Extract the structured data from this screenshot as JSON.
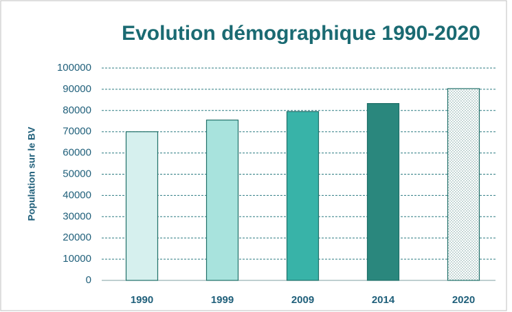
{
  "chart_data": {
    "type": "bar",
    "title": "Evolution démographique 1990-2020",
    "y_label": "Population sur le BV",
    "categories": [
      "1990",
      "1999",
      "2009",
      "2014",
      "2020"
    ],
    "values": [
      70000,
      75500,
      79500,
      83300,
      90300
    ],
    "colors": [
      "#d6f0ee",
      "#a8e3dd",
      "#38b3a8",
      "#2a877d",
      "#ffffff"
    ],
    "patterns": [
      null,
      null,
      null,
      null,
      "dots"
    ],
    "ylim": [
      0,
      100000
    ],
    "yticks": [
      0,
      10000,
      20000,
      30000,
      40000,
      50000,
      60000,
      70000,
      80000,
      90000,
      100000
    ],
    "grid": true
  }
}
